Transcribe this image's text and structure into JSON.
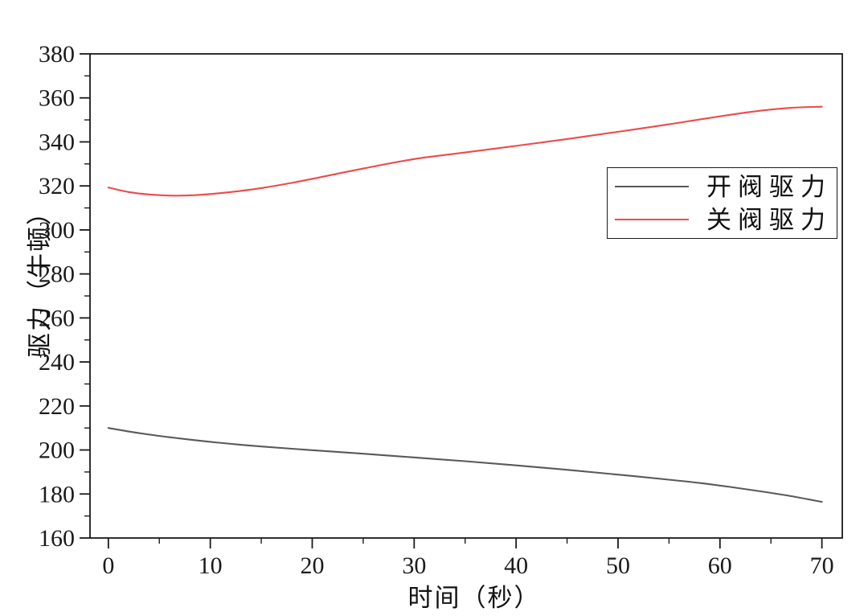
{
  "chart_data": {
    "type": "line",
    "title": "",
    "xlabel": "时间（秒）",
    "ylabel": "驱力（牛顿）",
    "xlim": [
      -1.8,
      72.0
    ],
    "ylim": [
      160,
      380
    ],
    "x_major_ticks": [
      0,
      10,
      20,
      30,
      40,
      50,
      60,
      70
    ],
    "x_minor_ticks": [
      5,
      15,
      25,
      35,
      45,
      55,
      65
    ],
    "y_major_ticks": [
      160,
      180,
      200,
      220,
      240,
      260,
      280,
      300,
      320,
      340,
      360,
      380
    ],
    "y_minor_ticks": [
      170,
      190,
      210,
      230,
      250,
      270,
      290,
      310,
      330,
      350,
      370
    ],
    "grid": false,
    "legend_position": "upper-right-inside",
    "axis_color": "#1a1a1a",
    "series": [
      {
        "name": "开阀驱力",
        "color": "#595959",
        "points": [
          [
            0,
            210.0
          ],
          [
            2,
            208.4
          ],
          [
            4,
            207.0
          ],
          [
            6,
            205.8
          ],
          [
            8,
            204.7
          ],
          [
            10,
            203.7
          ],
          [
            12,
            202.8
          ],
          [
            15,
            201.6
          ],
          [
            20,
            199.9
          ],
          [
            25,
            198.3
          ],
          [
            30,
            196.6
          ],
          [
            35,
            194.9
          ],
          [
            40,
            193.0
          ],
          [
            45,
            191.0
          ],
          [
            50,
            188.8
          ],
          [
            55,
            186.5
          ],
          [
            58,
            185.0
          ],
          [
            61,
            183.2
          ],
          [
            64,
            181.2
          ],
          [
            67,
            179.0
          ],
          [
            70,
            176.4
          ]
        ]
      },
      {
        "name": "关阀驱力",
        "color": "#ec4b4b",
        "points": [
          [
            0,
            319.3
          ],
          [
            2,
            317.2
          ],
          [
            4,
            316.1
          ],
          [
            6,
            315.6
          ],
          [
            8,
            315.7
          ],
          [
            10,
            316.3
          ],
          [
            12,
            317.2
          ],
          [
            15,
            319.0
          ],
          [
            18,
            321.4
          ],
          [
            20,
            323.2
          ],
          [
            25,
            327.9
          ],
          [
            30,
            332.2
          ],
          [
            35,
            335.2
          ],
          [
            40,
            338.2
          ],
          [
            45,
            341.3
          ],
          [
            50,
            344.6
          ],
          [
            55,
            348.0
          ],
          [
            58,
            350.2
          ],
          [
            61,
            352.3
          ],
          [
            64,
            354.2
          ],
          [
            67,
            355.5
          ],
          [
            70,
            356.0
          ]
        ]
      }
    ]
  }
}
